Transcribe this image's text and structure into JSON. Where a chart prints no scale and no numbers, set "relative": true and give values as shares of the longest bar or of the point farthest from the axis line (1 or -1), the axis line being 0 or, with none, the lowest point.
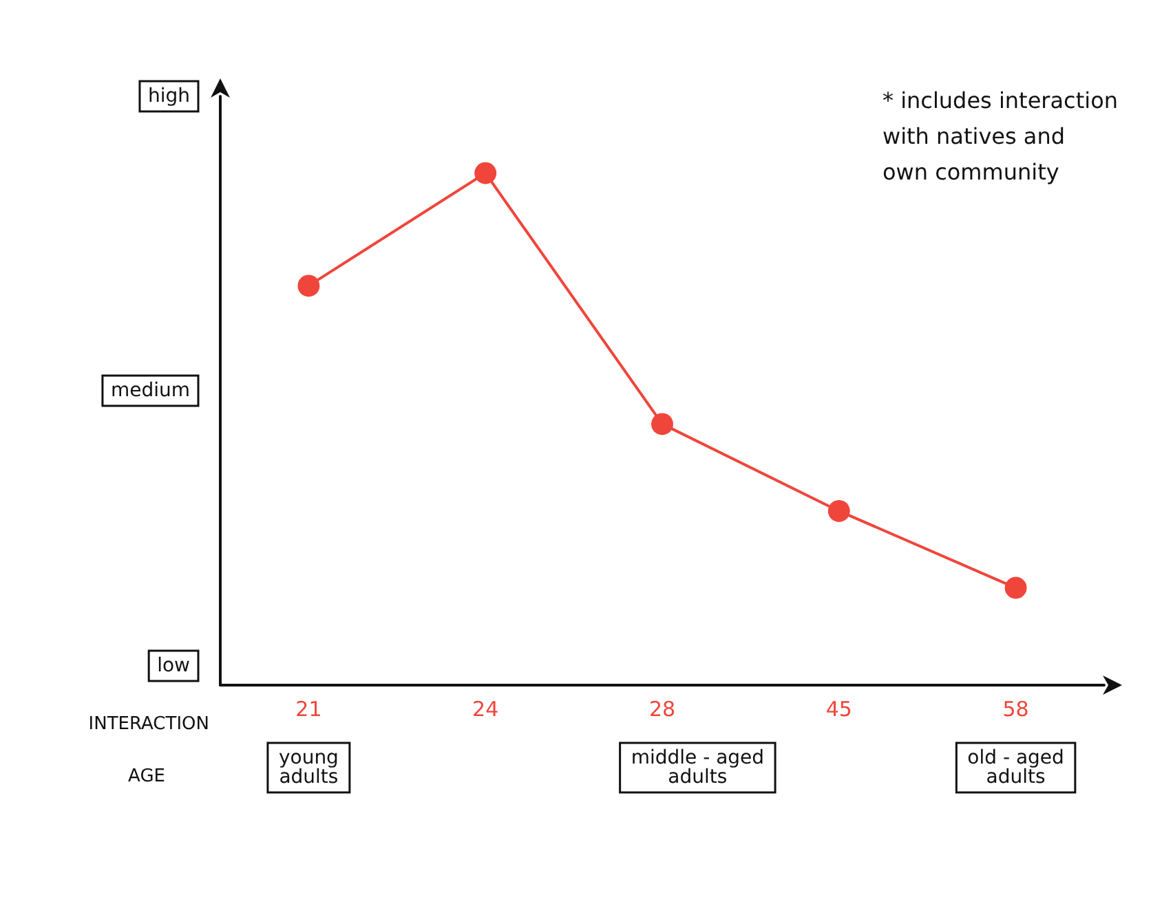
{
  "chart_data": {
    "type": "line",
    "relative": true,
    "xlabel": "AGE",
    "ylabel": "INTERACTION",
    "annotations": [
      "* includes interaction\nwith natives and\nown community",
      "high",
      "medium",
      "low",
      "young\nadults",
      "middle - aged\nadults",
      "old - aged\nadults"
    ],
    "categories": [
      "21",
      "24",
      "28",
      "45",
      "58"
    ],
    "series": [
      {
        "color": "#f0453a",
        "values": [
          0.78,
          1,
          0.51,
          0.34,
          0.19
        ]
      }
    ],
    "grid": false,
    "marker": "circle",
    "line_style": "solid"
  }
}
